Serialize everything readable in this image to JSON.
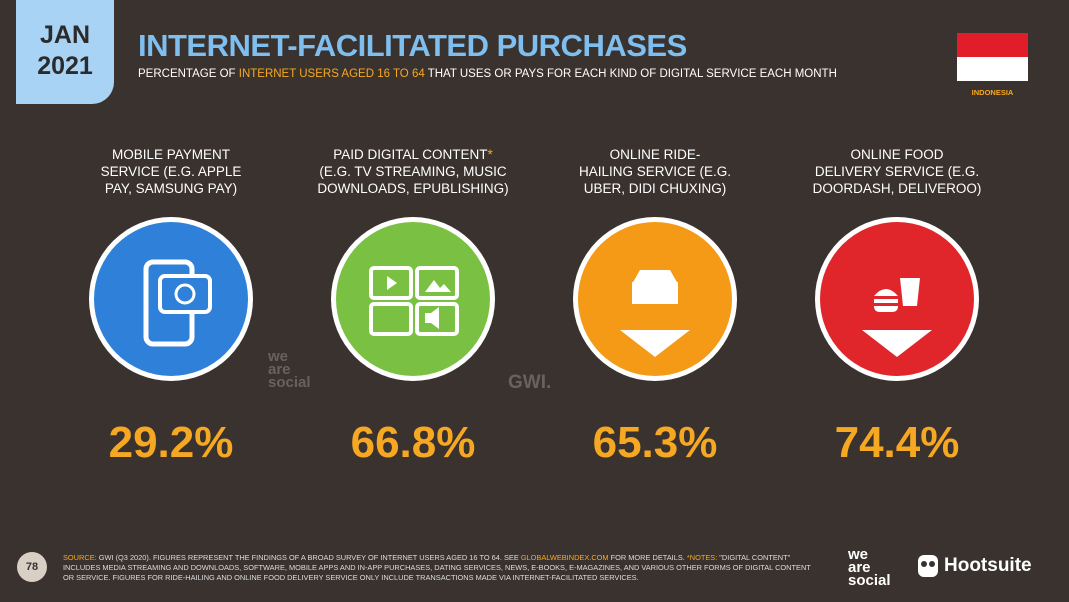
{
  "header": {
    "date": [
      "JAN",
      "2021"
    ],
    "title": "INTERNET-FACILITATED PURCHASES",
    "subtitle": [
      "PERCENTAGE OF ",
      "INTERNET USERS AGED 16 TO 64",
      " THAT USES OR PAYS FOR EACH KIND OF DIGITAL SERVICE EACH MONTH"
    ],
    "country": "INDONESIA"
  },
  "cards": [
    {
      "label": [
        "MOBILE PAYMENT",
        "SERVICE (E.G. APPLE",
        "PAY, SAMSUNG PAY)"
      ],
      "value": "29.2%"
    },
    {
      "label": [
        "PAID DIGITAL CONTENT",
        "(E.G. TV STREAMING, MUSIC",
        "DOWNLOADS, EPUBLISHING)"
      ],
      "marker": "*",
      "value": "66.8%"
    },
    {
      "label": [
        "ONLINE RIDE-",
        "HAILING SERVICE (E.G.",
        "UBER, DIDI CHUXING)"
      ],
      "value": "65.3%"
    },
    {
      "label": [
        "ONLINE FOOD",
        "DELIVERY SERVICE (E.G.",
        "DOORDASH, DELIVEROO)"
      ],
      "value": "74.4%"
    }
  ],
  "watermarks": {
    "we_are_social": [
      "we",
      "are",
      "social"
    ],
    "gwi": "GWI."
  },
  "footer": {
    "page": "78",
    "source": [
      "SOURCE:",
      " GWI (Q3 2020). FIGURES REPRESENT THE FINDINGS OF A BROAD SURVEY OF INTERNET USERS AGED 16 TO 64. SEE ",
      "GLOBALWEBINDEX.COM",
      " FOR MORE DETAILS. ",
      "*NOTES:",
      " \"DIGITAL CONTENT\" INCLUDES MEDIA STREAMING AND DOWNLOADS, SOFTWARE, MOBILE APPS AND IN-APP PURCHASES, DATING SERVICES, NEWS, E-BOOKS, E-MAGAZINES, AND VARIOUS OTHER FORMS OF DIGITAL CONTENT OR SERVICE. FIGURES FOR RIDE-HAILING AND ONLINE FOOD DELIVERY SERVICE ONLY INCLUDE TRANSACTIONS MADE VIA INTERNET-FACILITATED SERVICES."
    ],
    "logos": {
      "we_are_social": [
        "we",
        "are",
        "social"
      ],
      "hootsuite": "Hootsuite"
    }
  }
}
